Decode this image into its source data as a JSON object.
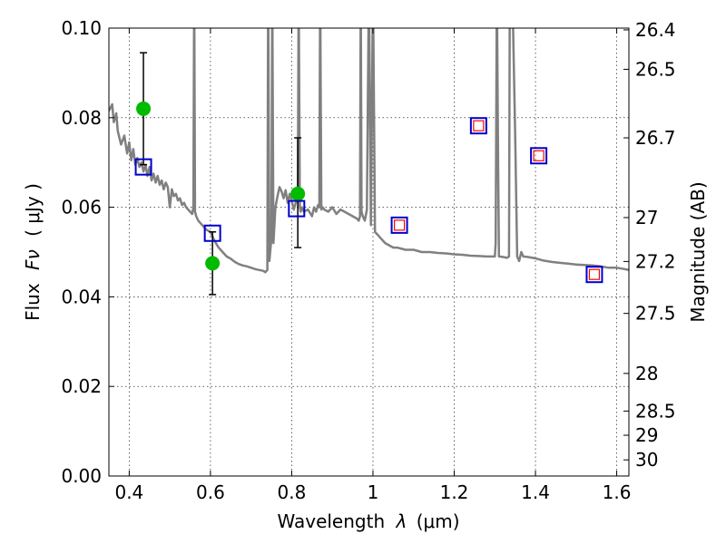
{
  "chart_data": {
    "type": "scatter",
    "xlabel_text": "Wavelength",
    "xlabel_symbol": "λ",
    "xlabel_unit": "(μm)",
    "ylabel_text": "Flux",
    "ylabel_symbol": "Fν",
    "ylabel_unit": "( μJy )",
    "y2label": "Magnitude (AB)",
    "xlim": [
      0.35,
      1.63
    ],
    "ylim": [
      0.0,
      0.1
    ],
    "grid": true,
    "x_ticks": [
      {
        "value": 0.4,
        "label": "0.4"
      },
      {
        "value": 0.6,
        "label": "0.6"
      },
      {
        "value": 0.8,
        "label": "0.8"
      },
      {
        "value": 1.0,
        "label": "1"
      },
      {
        "value": 1.2,
        "label": "1.2"
      },
      {
        "value": 1.4,
        "label": "1.4"
      },
      {
        "value": 1.6,
        "label": "1.6"
      }
    ],
    "y_ticks": [
      {
        "value": 0.0,
        "label": "0.00"
      },
      {
        "value": 0.02,
        "label": "0.02"
      },
      {
        "value": 0.04,
        "label": "0.04"
      },
      {
        "value": 0.06,
        "label": "0.06"
      },
      {
        "value": 0.08,
        "label": "0.08"
      },
      {
        "value": 0.1,
        "label": "0.10"
      }
    ],
    "magnitude_ticks": [
      {
        "flux": 0.0996,
        "label": "26.4"
      },
      {
        "flux": 0.0908,
        "label": "26.5"
      },
      {
        "flux": 0.0755,
        "label": "26.7"
      },
      {
        "flux": 0.0577,
        "label": "27"
      },
      {
        "flux": 0.0479,
        "label": "27.2"
      },
      {
        "flux": 0.0363,
        "label": "27.5"
      },
      {
        "flux": 0.0229,
        "label": "28"
      },
      {
        "flux": 0.0145,
        "label": "28.5"
      },
      {
        "flux": 0.0091,
        "label": "29"
      },
      {
        "flux": 0.0036,
        "label": "30"
      }
    ],
    "series": [
      {
        "name": "model SED",
        "kind": "line",
        "color": "#808080",
        "x": [
          0.35,
          0.358,
          0.362,
          0.368,
          0.372,
          0.38,
          0.388,
          0.395,
          0.4,
          0.405,
          0.41,
          0.415,
          0.42,
          0.425,
          0.43,
          0.435,
          0.44,
          0.445,
          0.45,
          0.455,
          0.46,
          0.465,
          0.47,
          0.475,
          0.48,
          0.485,
          0.49,
          0.495,
          0.5,
          0.505,
          0.51,
          0.515,
          0.52,
          0.525,
          0.53,
          0.535,
          0.54,
          0.545,
          0.55,
          0.555,
          0.558,
          0.56,
          0.562,
          0.565,
          0.57,
          0.58,
          0.59,
          0.6,
          0.61,
          0.62,
          0.63,
          0.64,
          0.65,
          0.66,
          0.67,
          0.68,
          0.69,
          0.7,
          0.71,
          0.72,
          0.73,
          0.735,
          0.74,
          0.742,
          0.745,
          0.75,
          0.752,
          0.755,
          0.76,
          0.765,
          0.77,
          0.775,
          0.78,
          0.785,
          0.79,
          0.795,
          0.8,
          0.805,
          0.81,
          0.815,
          0.817,
          0.82,
          0.822,
          0.825,
          0.83,
          0.84,
          0.85,
          0.855,
          0.86,
          0.865,
          0.868,
          0.87,
          0.873,
          0.876,
          0.88,
          0.89,
          0.9,
          0.91,
          0.92,
          0.93,
          0.94,
          0.95,
          0.96,
          0.965,
          0.968,
          0.97,
          0.972,
          0.975,
          0.98,
          0.985,
          0.99,
          0.995,
          1.0,
          1.005,
          1.01,
          1.02,
          1.03,
          1.04,
          1.05,
          1.06,
          1.08,
          1.1,
          1.12,
          1.14,
          1.16,
          1.18,
          1.2,
          1.22,
          1.24,
          1.26,
          1.28,
          1.3,
          1.302,
          1.305,
          1.308,
          1.31,
          1.32,
          1.33,
          1.335,
          1.337,
          1.34,
          1.345,
          1.35,
          1.355,
          1.36,
          1.365,
          1.37,
          1.38,
          1.4,
          1.42,
          1.44,
          1.46,
          1.48,
          1.5,
          1.52,
          1.54,
          1.56,
          1.58,
          1.6,
          1.62,
          1.63
        ],
        "y": [
          0.0815,
          0.083,
          0.079,
          0.081,
          0.077,
          0.074,
          0.076,
          0.072,
          0.0745,
          0.0705,
          0.073,
          0.0695,
          0.071,
          0.069,
          0.07,
          0.068,
          0.0695,
          0.067,
          0.069,
          0.066,
          0.0675,
          0.0655,
          0.067,
          0.065,
          0.066,
          0.064,
          0.0655,
          0.0645,
          0.06,
          0.064,
          0.0625,
          0.063,
          0.0615,
          0.062,
          0.0605,
          0.061,
          0.06,
          0.0595,
          0.059,
          0.0585,
          0.06,
          0.11,
          0.059,
          0.058,
          0.057,
          0.056,
          0.055,
          0.0545,
          0.0525,
          0.051,
          0.05,
          0.049,
          0.0485,
          0.0478,
          0.0473,
          0.047,
          0.0468,
          0.0465,
          0.0462,
          0.046,
          0.0458,
          0.0455,
          0.046,
          0.11,
          0.048,
          0.053,
          0.11,
          0.052,
          0.06,
          0.0625,
          0.0645,
          0.0635,
          0.062,
          0.0638,
          0.061,
          0.063,
          0.0615,
          0.0595,
          0.061,
          0.062,
          0.11,
          0.06,
          0.059,
          0.06,
          0.059,
          0.0595,
          0.058,
          0.06,
          0.059,
          0.0605,
          0.06,
          0.11,
          0.0595,
          0.06,
          0.0595,
          0.059,
          0.06,
          0.0585,
          0.0595,
          0.059,
          0.0585,
          0.058,
          0.0575,
          0.057,
          0.058,
          0.11,
          0.059,
          0.058,
          0.057,
          0.0595,
          0.11,
          0.056,
          0.11,
          0.0545,
          0.054,
          0.053,
          0.052,
          0.0515,
          0.051,
          0.051,
          0.0505,
          0.0505,
          0.05,
          0.05,
          0.0498,
          0.0497,
          0.0495,
          0.0494,
          0.0492,
          0.0491,
          0.049,
          0.049,
          0.052,
          0.11,
          0.07,
          0.049,
          0.0489,
          0.0487,
          0.049,
          0.11,
          0.11,
          0.1,
          0.076,
          0.049,
          0.048,
          0.05,
          0.049,
          0.0489,
          0.0486,
          0.0481,
          0.0478,
          0.0476,
          0.0474,
          0.0472,
          0.0471,
          0.047,
          0.0468,
          0.0465,
          0.0465,
          0.0462,
          0.046
        ]
      },
      {
        "name": "observed photometry",
        "kind": "points",
        "color": "#00bb00",
        "x": [
          0.435,
          0.605,
          0.815
        ],
        "y": [
          0.082,
          0.0475,
          0.063
        ],
        "yerr_low": [
          0.0695,
          0.0405,
          0.051
        ],
        "yerr_high": [
          0.0945,
          0.0545,
          0.0755
        ]
      },
      {
        "name": "model photometry",
        "kind": "points",
        "color": "#0000cc",
        "x": [
          0.435,
          0.605,
          0.812,
          1.065,
          1.26,
          1.408,
          1.545
        ],
        "y": [
          0.069,
          0.0542,
          0.0597,
          0.056,
          0.0782,
          0.0715,
          0.045
        ]
      },
      {
        "name": "upper limits",
        "kind": "points",
        "color": "#ff0000",
        "x": [
          1.065,
          1.26,
          1.408,
          1.545
        ],
        "y": [
          0.056,
          0.0782,
          0.0715,
          0.045
        ]
      }
    ]
  }
}
